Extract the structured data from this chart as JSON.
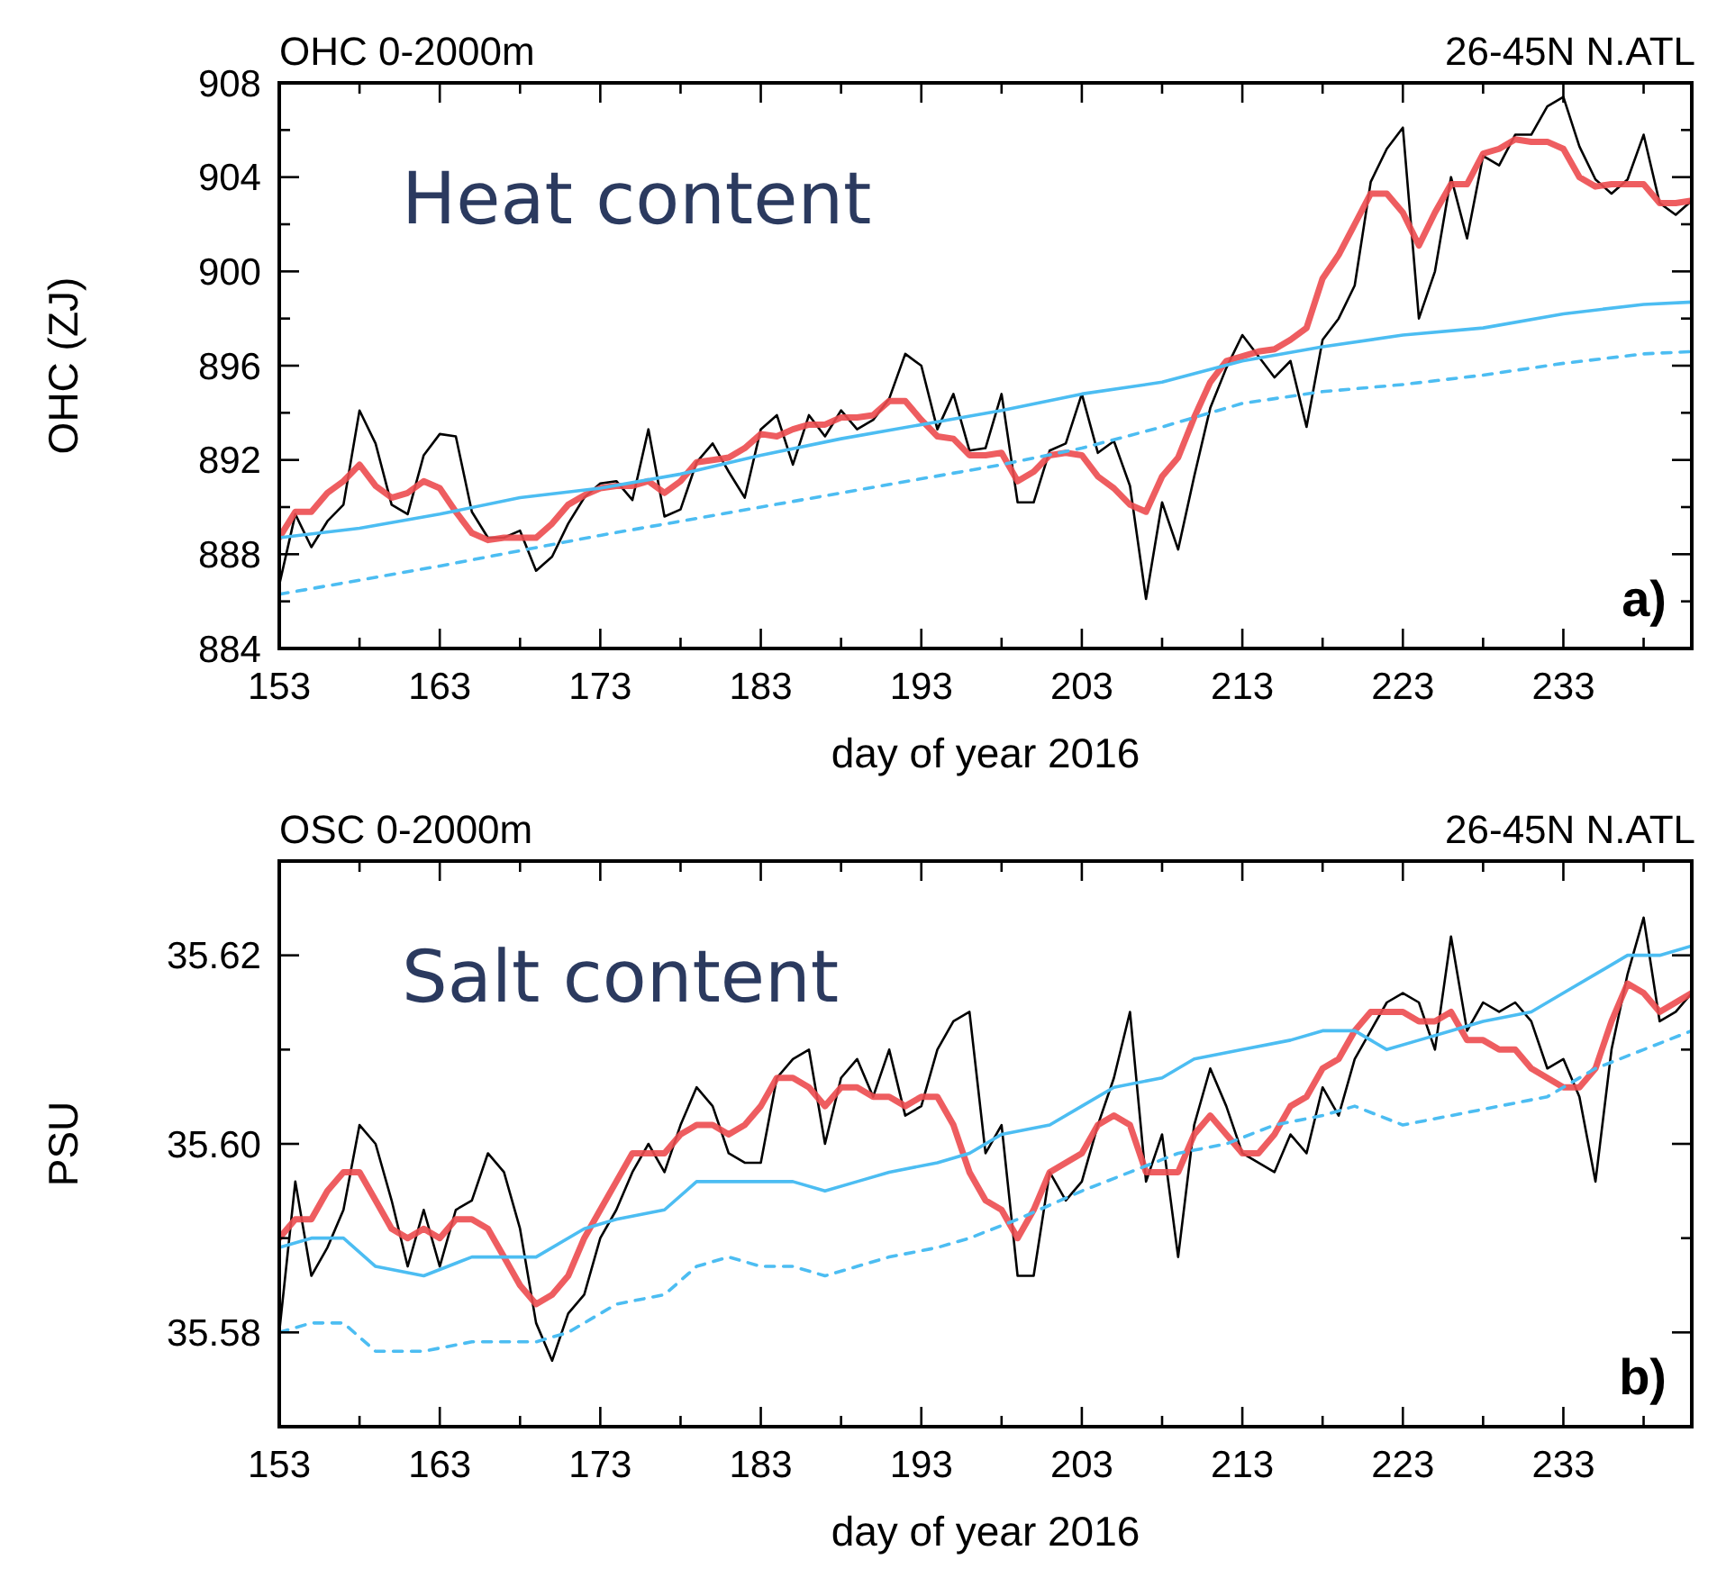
{
  "chart_data": [
    {
      "type": "line",
      "title": "OHC 0-2000m",
      "xlabel": "day of year 2016",
      "ylabel": "OHC (ZJ)",
      "annotations": [
        "Heat content",
        "26-45N N.ATL",
        "a)"
      ],
      "xlim": [
        153,
        241
      ],
      "xticks": [
        153,
        {
          "value": 158,
          "label": null
        },
        163,
        {
          "value": 168,
          "label": null
        },
        173,
        {
          "value": 178,
          "label": null
        },
        183,
        {
          "value": 188,
          "label": null
        },
        193,
        {
          "value": 198,
          "label": null
        },
        203,
        {
          "value": 208,
          "label": null
        },
        213,
        {
          "value": 218,
          "label": null
        },
        223,
        {
          "value": 228,
          "label": null
        },
        233,
        {
          "value": 238,
          "label": null
        }
      ],
      "ylim": [
        884,
        908
      ],
      "yticks": [
        884,
        {
          "value": 886,
          "label": null
        },
        888,
        {
          "value": 890,
          "label": null
        },
        892,
        {
          "value": 894,
          "label": null
        },
        896,
        {
          "value": 898,
          "label": null
        },
        900,
        {
          "value": 902,
          "label": null
        },
        904,
        {
          "value": 906,
          "label": null
        },
        908
      ],
      "x": [
        153,
        154,
        155,
        156,
        157,
        158,
        159,
        160,
        161,
        162,
        163,
        164,
        165,
        166,
        167,
        168,
        169,
        170,
        171,
        172,
        173,
        174,
        175,
        176,
        177,
        178,
        179,
        180,
        181,
        182,
        183,
        184,
        185,
        186,
        187,
        188,
        189,
        190,
        191,
        192,
        193,
        194,
        195,
        196,
        197,
        198,
        199,
        200,
        201,
        202,
        203,
        204,
        205,
        206,
        207,
        208,
        209,
        210,
        211,
        212,
        213,
        214,
        215,
        216,
        217,
        218,
        219,
        220,
        221,
        222,
        223,
        224,
        225,
        226,
        227,
        228,
        229,
        230,
        231,
        232,
        233,
        234,
        235,
        236,
        237,
        238,
        239,
        240,
        241
      ],
      "series": [
        {
          "color": "#000000",
          "values": [
            886.7,
            889.7,
            888.3,
            889.4,
            890.1,
            894.1,
            892.7,
            890.1,
            889.7,
            892.2,
            893.1,
            893.0,
            889.8,
            888.7,
            888.7,
            889.0,
            887.3,
            887.9,
            889.3,
            890.4,
            891.0,
            891.1,
            890.3,
            893.3,
            889.6,
            889.9,
            891.9,
            892.7,
            891.5,
            890.4,
            893.3,
            893.9,
            891.8,
            893.9,
            893.0,
            894.1,
            893.3,
            893.7,
            894.6,
            896.5,
            896.0,
            893.3,
            894.8,
            892.4,
            892.5,
            894.8,
            890.2,
            890.2,
            892.4,
            892.7,
            894.8,
            892.3,
            892.8,
            890.9,
            886.1,
            890.2,
            888.2,
            891.3,
            894.2,
            895.9,
            897.3,
            896.4,
            895.5,
            896.2,
            893.4,
            897.1,
            898.0,
            899.4,
            903.8,
            905.2,
            906.1,
            898.0,
            900.0,
            904.0,
            901.4,
            904.9,
            904.5,
            905.8,
            905.8,
            907.0,
            907.4,
            905.3,
            903.9,
            903.3,
            903.9,
            905.8,
            902.9,
            902.4,
            903.0
          ]
        },
        {
          "color": "#ec4b4f",
          "values": [
            888.7,
            889.8,
            889.8,
            890.6,
            891.1,
            891.8,
            890.9,
            890.4,
            890.6,
            891.1,
            890.8,
            889.8,
            888.9,
            888.6,
            888.7,
            888.7,
            888.7,
            889.3,
            890.1,
            890.5,
            890.8,
            890.9,
            890.9,
            891.1,
            890.6,
            891.1,
            891.9,
            892.0,
            892.1,
            892.5,
            893.1,
            893.0,
            893.3,
            893.5,
            893.5,
            893.8,
            893.8,
            893.9,
            894.5,
            894.5,
            893.7,
            893.0,
            892.9,
            892.2,
            892.2,
            892.3,
            891.1,
            891.5,
            892.2,
            892.3,
            892.2,
            891.3,
            890.8,
            890.1,
            889.8,
            891.3,
            892.1,
            893.8,
            895.3,
            896.2,
            896.4,
            896.6,
            896.7,
            897.1,
            897.6,
            899.7,
            900.7,
            902.0,
            903.3,
            903.3,
            902.5,
            901.1,
            902.5,
            903.7,
            903.7,
            905.0,
            905.2,
            905.6,
            905.5,
            905.5,
            905.2,
            904.0,
            903.6,
            903.7,
            903.7,
            903.7,
            902.9,
            902.9,
            903.0
          ]
        },
        {
          "color": "#4cbdf2",
          "x": [
            153,
            158,
            163,
            168,
            173,
            178,
            183,
            188,
            193,
            198,
            203,
            208,
            213,
            218,
            223,
            228,
            233,
            238,
            241
          ],
          "values": [
            888.7,
            889.1,
            889.7,
            890.4,
            890.8,
            891.4,
            892.2,
            892.9,
            893.5,
            894.1,
            894.8,
            895.3,
            896.2,
            896.8,
            897.3,
            897.6,
            898.2,
            898.6,
            898.7
          ]
        },
        {
          "color": "#4cbdf2",
          "line_style": "dashed",
          "x": [
            153,
            163,
            173,
            183,
            193,
            198,
            203,
            208,
            213,
            218,
            223,
            228,
            233,
            238,
            241
          ],
          "values": [
            886.3,
            887.5,
            888.8,
            890.0,
            891.2,
            891.8,
            892.5,
            893.4,
            894.4,
            894.9,
            895.2,
            895.6,
            896.1,
            896.5,
            896.6
          ]
        }
      ]
    },
    {
      "type": "line",
      "title": "OSC 0-2000m",
      "xlabel": "day of year 2016",
      "ylabel": "PSU",
      "annotations": [
        "Salt content",
        "26-45N N.ATL",
        "b)"
      ],
      "xlim": [
        153,
        241
      ],
      "xticks": [
        153,
        {
          "value": 158,
          "label": null
        },
        163,
        {
          "value": 168,
          "label": null
        },
        173,
        {
          "value": 178,
          "label": null
        },
        183,
        {
          "value": 188,
          "label": null
        },
        193,
        {
          "value": 198,
          "label": null
        },
        203,
        {
          "value": 208,
          "label": null
        },
        213,
        {
          "value": 218,
          "label": null
        },
        223,
        {
          "value": 228,
          "label": null
        },
        233,
        {
          "value": 238,
          "label": null
        }
      ],
      "ylim": [
        35.57,
        35.63
      ],
      "yticks": [
        {
          "value": 35.57,
          "label": null
        },
        35.58,
        {
          "value": 35.59,
          "label": null
        },
        {
          "value": 35.6,
          "label": "35.60"
        },
        {
          "value": 35.61,
          "label": null
        },
        35.62,
        {
          "value": 35.63,
          "label": null
        }
      ],
      "x": [
        153,
        154,
        155,
        156,
        157,
        158,
        159,
        160,
        161,
        162,
        163,
        164,
        165,
        166,
        167,
        168,
        169,
        170,
        171,
        172,
        173,
        174,
        175,
        176,
        177,
        178,
        179,
        180,
        181,
        182,
        183,
        184,
        185,
        186,
        187,
        188,
        189,
        190,
        191,
        192,
        193,
        194,
        195,
        196,
        197,
        198,
        199,
        200,
        201,
        202,
        203,
        204,
        205,
        206,
        207,
        208,
        209,
        210,
        211,
        212,
        213,
        214,
        215,
        216,
        217,
        218,
        219,
        220,
        221,
        222,
        223,
        224,
        225,
        226,
        227,
        228,
        229,
        230,
        231,
        232,
        233,
        234,
        235,
        236,
        237,
        238,
        239,
        240,
        241
      ],
      "series": [
        {
          "color": "#000000",
          "values": [
            35.58,
            35.596,
            35.586,
            35.589,
            35.593,
            35.602,
            35.6,
            35.594,
            35.587,
            35.593,
            35.587,
            35.593,
            35.594,
            35.599,
            35.597,
            35.591,
            35.581,
            35.577,
            35.582,
            35.584,
            35.59,
            35.593,
            35.597,
            35.6,
            35.597,
            35.602,
            35.606,
            35.604,
            35.599,
            35.598,
            35.598,
            35.607,
            35.609,
            35.61,
            35.6,
            35.607,
            35.609,
            35.605,
            35.61,
            35.603,
            35.604,
            35.61,
            35.613,
            35.614,
            35.599,
            35.602,
            35.586,
            35.586,
            35.597,
            35.594,
            35.596,
            35.602,
            35.607,
            35.614,
            35.596,
            35.601,
            35.588,
            35.602,
            35.608,
            35.604,
            35.599,
            35.598,
            35.597,
            35.601,
            35.599,
            35.606,
            35.603,
            35.609,
            35.612,
            35.615,
            35.616,
            35.615,
            35.61,
            35.622,
            35.612,
            35.615,
            35.614,
            35.615,
            35.613,
            35.608,
            35.609,
            35.605,
            35.596,
            35.61,
            35.618,
            35.624,
            35.613,
            35.614,
            35.616
          ]
        },
        {
          "color": "#ec4b4f",
          "values": [
            35.59,
            35.592,
            35.592,
            35.595,
            35.597,
            35.597,
            35.594,
            35.591,
            35.59,
            35.591,
            35.59,
            35.592,
            35.592,
            35.591,
            35.588,
            35.585,
            35.583,
            35.584,
            35.586,
            35.59,
            35.593,
            35.596,
            35.599,
            35.599,
            35.599,
            35.601,
            35.602,
            35.602,
            35.601,
            35.602,
            35.604,
            35.607,
            35.607,
            35.606,
            35.604,
            35.606,
            35.606,
            35.605,
            35.605,
            35.604,
            35.605,
            35.605,
            35.602,
            35.597,
            35.594,
            35.593,
            35.59,
            35.593,
            35.597,
            35.598,
            35.599,
            35.602,
            35.603,
            35.602,
            35.597,
            35.597,
            35.597,
            35.601,
            35.603,
            35.601,
            35.599,
            35.599,
            35.601,
            35.604,
            35.605,
            35.608,
            35.609,
            35.612,
            35.614,
            35.614,
            35.614,
            35.613,
            35.613,
            35.614,
            35.611,
            35.611,
            35.61,
            35.61,
            35.608,
            35.607,
            35.606,
            35.606,
            35.608,
            35.613,
            35.617,
            35.616,
            35.614,
            35.615,
            35.616
          ]
        },
        {
          "color": "#4cbdf2",
          "x": [
            153,
            155,
            157,
            159,
            162,
            165,
            169,
            172,
            174,
            177,
            179,
            181,
            183,
            185,
            187,
            189,
            191,
            194,
            196,
            198,
            201,
            203,
            205,
            208,
            210,
            213,
            216,
            218,
            220,
            222,
            224,
            226,
            228,
            231,
            233,
            235,
            237,
            239,
            241
          ],
          "values": [
            35.589,
            35.59,
            35.59,
            35.587,
            35.586,
            35.588,
            35.588,
            35.591,
            35.592,
            35.593,
            35.596,
            35.596,
            35.596,
            35.596,
            35.595,
            35.596,
            35.597,
            35.598,
            35.599,
            35.601,
            35.602,
            35.604,
            35.606,
            35.607,
            35.609,
            35.61,
            35.611,
            35.612,
            35.612,
            35.61,
            35.611,
            35.612,
            35.613,
            35.614,
            35.616,
            35.618,
            35.62,
            35.62,
            35.621
          ]
        },
        {
          "color": "#4cbdf2",
          "line_style": "dashed",
          "x": [
            153,
            155,
            157,
            159,
            162,
            165,
            167,
            169,
            171,
            174,
            177,
            179,
            181,
            183,
            185,
            187,
            189,
            191,
            194,
            196,
            199,
            203,
            206,
            209,
            212,
            215,
            218,
            220,
            223,
            226,
            229,
            232,
            235,
            238,
            241
          ],
          "values": [
            35.58,
            35.581,
            35.581,
            35.578,
            35.578,
            35.579,
            35.579,
            35.579,
            35.58,
            35.583,
            35.584,
            35.587,
            35.588,
            35.587,
            35.587,
            35.586,
            35.587,
            35.588,
            35.589,
            35.59,
            35.592,
            35.595,
            35.597,
            35.599,
            35.6,
            35.602,
            35.603,
            35.604,
            35.602,
            35.603,
            35.604,
            35.605,
            35.608,
            35.61,
            35.612
          ]
        }
      ]
    }
  ]
}
